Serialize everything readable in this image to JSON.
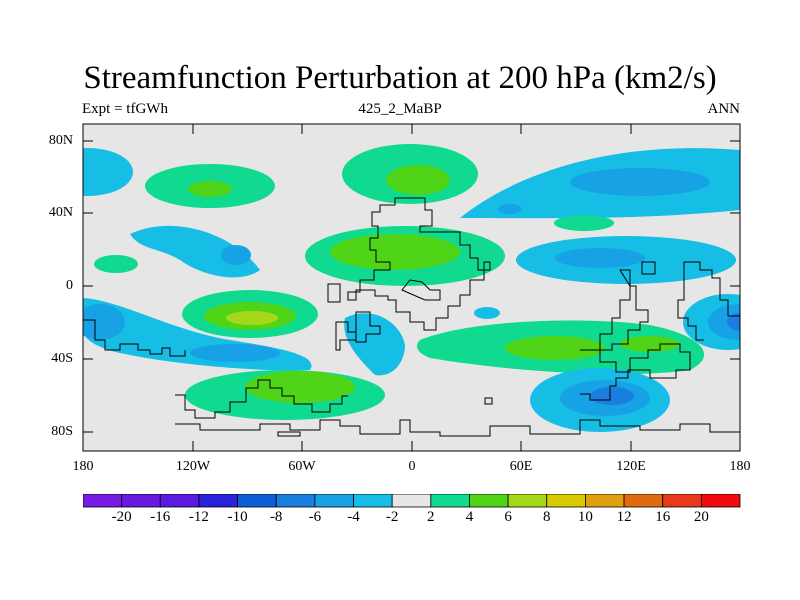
{
  "title": "Streamfunction Perturbation at 200 hPa (km2/s)",
  "subtitle_left": "Expt = tfGWh",
  "subtitle_center": "425_2_MaBP",
  "subtitle_right": "ANN",
  "y_ticks": [
    "80N",
    "40N",
    "0",
    "40S",
    "80S"
  ],
  "x_ticks": [
    "180",
    "120W",
    "60W",
    "0",
    "60E",
    "120E",
    "180"
  ],
  "colorbar": {
    "labels": [
      "-20",
      "-16",
      "-12",
      "-10",
      "-8",
      "-6",
      "-4",
      "-2",
      "2",
      "4",
      "6",
      "8",
      "10",
      "12",
      "16",
      "20"
    ],
    "colors": [
      "#7a1ae6",
      "#6a18e0",
      "#5a1ae0",
      "#2a22d8",
      "#0e5ed6",
      "#1a7ee0",
      "#18a2e6",
      "#16bee6",
      "#e6e6e6",
      "#10da90",
      "#50d418",
      "#a6d81a",
      "#d8cc00",
      "#e0a010",
      "#e06a10",
      "#e83a1a",
      "#f00c0c"
    ]
  },
  "colors": {
    "ocean_bg": "#e6e6e6",
    "coast": "#000000"
  },
  "chart_data": {
    "type": "heatmap",
    "title": "Streamfunction Perturbation at 200 hPa (km2/s)",
    "variable": "streamfunction perturbation",
    "units": "km2/s",
    "level": "200 hPa",
    "xlim": [
      -180,
      180
    ],
    "ylim": [
      -90,
      90
    ],
    "contour_levels": [
      -20,
      -16,
      -12,
      -10,
      -8,
      -6,
      -4,
      -2,
      2,
      4,
      6,
      8,
      10,
      12,
      16,
      20
    ],
    "features": [
      {
        "name": "NH west Pacific/Atlantic negative",
        "lon": -175,
        "lat": 50,
        "max_value": -4
      },
      {
        "name": "N Pacific positive",
        "lon": -100,
        "lat": 45,
        "max_value": 6
      },
      {
        "name": "E Pacific negative",
        "lon": -80,
        "lat": 15,
        "max_value": -6
      },
      {
        "name": "Atlantic-Africa NH positive",
        "lon": 10,
        "lat": 48,
        "max_value": 6
      },
      {
        "name": "Sahara/Mediterranean positive",
        "lon": 0,
        "lat": 18,
        "max_value": 6
      },
      {
        "name": "Eurasia negative",
        "lon": 110,
        "lat": 45,
        "max_value": -6
      },
      {
        "name": "Asia subtropical negative",
        "lon": 100,
        "lat": 15,
        "max_value": -6
      },
      {
        "name": "SH Pacific positive",
        "lon": -100,
        "lat": -15,
        "max_value": 10
      },
      {
        "name": "SH Pacific negative",
        "lon": -130,
        "lat": -30,
        "max_value": -6
      },
      {
        "name": "S Atlantic negative",
        "lon": -20,
        "lat": -20,
        "max_value": -4
      },
      {
        "name": "Indian Ocean positive",
        "lon": 70,
        "lat": -25,
        "max_value": 6
      },
      {
        "name": "W Pacific SH negative",
        "lon": 175,
        "lat": -20,
        "max_value": -8
      },
      {
        "name": "Southern Ocean positive",
        "lon": -65,
        "lat": -60,
        "max_value": 6
      },
      {
        "name": "Southern Ocean negative",
        "lon": 115,
        "lat": -60,
        "max_value": -8
      }
    ]
  }
}
